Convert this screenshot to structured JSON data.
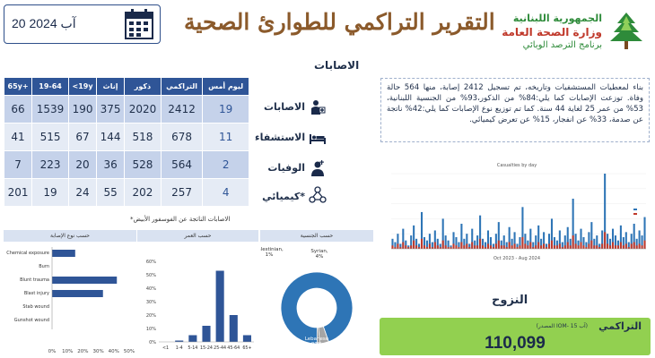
{
  "header": {
    "date": "20 آب 2024",
    "title": "التقرير التراكمي للطوارئ الصحية",
    "logo_line1": "الجمهورية اللبنانية",
    "logo_line2": "وزارة الصحة العامة",
    "logo_line3": "برنامج الترصد الوبائي"
  },
  "injuries_label": "الاصابات",
  "table": {
    "headers": [
      "65y+",
      "19-64",
      "<19y",
      "إناث",
      "ذكور",
      "التراكمي",
      "ليوم أمس"
    ],
    "rows": [
      {
        "label": "الاصابات",
        "icon": "injured-person-icon",
        "cells": [
          "66",
          "1539",
          "190",
          "375",
          "2020",
          "2412",
          "19"
        ]
      },
      {
        "label": "الاستشفاء",
        "icon": "hospital-bed-icon",
        "cells": [
          "41",
          "515",
          "67",
          "144",
          "518",
          "678",
          "11"
        ]
      },
      {
        "label": "الوفيات",
        "icon": "deceased-person-icon",
        "cells": [
          "7",
          "223",
          "20",
          "36",
          "528",
          "564",
          "2"
        ]
      },
      {
        "label": "كيميائي*",
        "icon": "chemical-icon",
        "cells": [
          "201",
          "19",
          "24",
          "55",
          "202",
          "257",
          "4"
        ]
      }
    ],
    "note": "*الاصابات الناتجة عن الفوسفور الأبيض"
  },
  "summary": "بناء لمعطيات المستشفيات وتاريخه، تم تسجيل 2412 إصابة، منها 564 حالة وفاة. توزعت الإصابات كما يلي:84% من الذكور،93% من الجنسية اللبنانية، 53% من عمر 25 لغاية 44 سنة. كما تم توزيع نوع الإصابات كما يلي:42% ناتجة عن صدمة، 33% عن انفجار، 15% عن تعرض كيميائي.",
  "panels": {
    "type_header": "حسب نوع الإصابة",
    "age_header": "حسب العمر",
    "nat_header": "حسب الجنسية"
  },
  "displacement": {
    "title": "النزوح",
    "cumulative_label": "التراكمي",
    "source": "(المصدر IOM- 15 آب)",
    "value": "110,099"
  },
  "colors": {
    "table_header": "#2f5597",
    "row_odd": "#c5d2ea",
    "row_even": "#e5ebf5",
    "title_brown": "#8b5a2b",
    "green_box": "#92d050",
    "bar_blue": "#2f5597"
  },
  "chart_data": [
    {
      "type": "bar",
      "orientation": "horizontal",
      "title": "",
      "categories": [
        "Chemical exposure",
        "Burn",
        "Blunt trauma",
        "Blast injury",
        "Stab wound",
        "Gunshot wound"
      ],
      "values": [
        15,
        0,
        42,
        33,
        0,
        0
      ],
      "xlim": [
        0,
        50
      ],
      "xticks": [
        "0%",
        "10%",
        "20%",
        "30%",
        "40%",
        "50%"
      ]
    },
    {
      "type": "bar",
      "title": "",
      "categories": [
        "<1",
        "1-4",
        "5-14",
        "15-24",
        "25-44",
        "45-64",
        "65+"
      ],
      "values": [
        0,
        1,
        5,
        12,
        53,
        20,
        5
      ],
      "ylim": [
        0,
        60
      ],
      "yticks": [
        "0%",
        "10%",
        "20%",
        "30%",
        "40%",
        "50%",
        "60%"
      ]
    },
    {
      "type": "pie",
      "title": "",
      "slices": [
        {
          "name": "Lebanese",
          "label": "Lebanese\n93%",
          "value": 93
        },
        {
          "name": "Syrian",
          "label": "Syrian,\n4%",
          "value": 4
        },
        {
          "name": "Palestinian",
          "label": "Palestinian,\n1%",
          "value": 1
        }
      ]
    },
    {
      "type": "bar",
      "title": "Casualties by day",
      "x_range": "Oct 2023 - Aug 2024",
      "series": [
        {
          "values": [
            6,
            4,
            9,
            3,
            12,
            5,
            2,
            8,
            14,
            6,
            3,
            22,
            7,
            5,
            9,
            4,
            11,
            6,
            3,
            18,
            8,
            5,
            2,
            10,
            7,
            4,
            15,
            6,
            9,
            3,
            12,
            5,
            8,
            20,
            6,
            4,
            11,
            7,
            3,
            9,
            16,
            5,
            8,
            4,
            13,
            6,
            10,
            3,
            7,
            25,
            9,
            5,
            12,
            4,
            8,
            14,
            6,
            10,
            3,
            9,
            18,
            7,
            5,
            11,
            4,
            8,
            13,
            6,
            30,
            9,
            5,
            12,
            7,
            4,
            10,
            16,
            6,
            8,
            3,
            11,
            45,
            9,
            6,
            12,
            8,
            5,
            14,
            7,
            10,
            4,
            9,
            15,
            6,
            11,
            8,
            19
          ]
        },
        {
          "values": [
            2,
            1,
            3,
            1,
            4,
            2,
            1,
            2,
            5,
            2,
            1,
            6,
            2,
            1,
            3,
            1,
            4,
            2,
            1,
            5,
            2,
            1,
            1,
            3,
            2,
            1,
            4,
            2,
            3,
            1,
            4,
            2,
            2,
            6,
            2,
            1,
            3,
            2,
            1,
            3,
            5,
            2,
            2,
            1,
            4,
            2,
            3,
            1,
            2,
            7,
            3,
            2,
            4,
            1,
            2,
            4,
            2,
            3,
            1,
            3,
            5,
            2,
            2,
            3,
            1,
            2,
            4,
            2,
            8,
            3,
            2,
            4,
            2,
            1,
            3,
            5,
            2,
            2,
            1,
            3,
            10,
            3,
            2,
            4,
            2,
            2,
            4,
            2,
            3,
            1,
            3,
            4,
            2,
            3,
            2,
            5
          ]
        }
      ]
    }
  ]
}
